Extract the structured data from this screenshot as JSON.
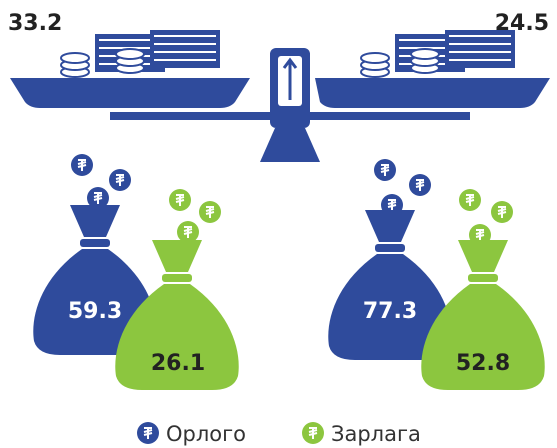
{
  "scale": {
    "left": 33.2,
    "right": 24.5
  },
  "groups": [
    {
      "income": 59.3,
      "expense": 26.1
    },
    {
      "income": 77.3,
      "expense": 52.8
    }
  ],
  "legend": [
    {
      "name": "Орлого",
      "color": "#2f4b9c"
    },
    {
      "name": "Зарлага",
      "color": "#8cc63f"
    }
  ]
}
